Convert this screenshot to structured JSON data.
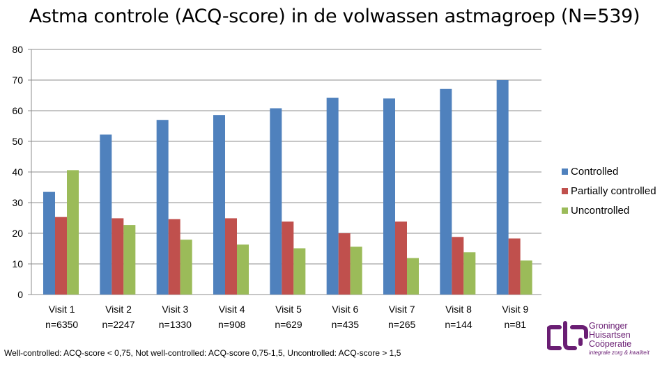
{
  "chart_data": {
    "type": "bar",
    "title": "Astma controle (ACQ-score) in de volwassen astmagroep (N=539)",
    "categories": [
      {
        "label": "Visit 1",
        "sub": "n=6350"
      },
      {
        "label": "Visit 2",
        "sub": "n=2247"
      },
      {
        "label": "Visit 3",
        "sub": "n=1330"
      },
      {
        "label": "Visit 4",
        "sub": "n=908"
      },
      {
        "label": "Visit 5",
        "sub": "n=629"
      },
      {
        "label": "Visit 6",
        "sub": "n=435"
      },
      {
        "label": "Visit 7",
        "sub": "n=265"
      },
      {
        "label": "Visit 8",
        "sub": "n=144"
      },
      {
        "label": "Visit 9",
        "sub": "n=81"
      }
    ],
    "series": [
      {
        "name": "Controlled",
        "color": "#4f81bd",
        "values": [
          33.5,
          52.2,
          57.0,
          58.6,
          60.8,
          64.2,
          64.0,
          67.1,
          70.0
        ]
      },
      {
        "name": "Partially controlled",
        "color": "#c0504d",
        "values": [
          25.3,
          24.9,
          24.6,
          24.9,
          23.8,
          20.0,
          23.8,
          18.8,
          18.3
        ]
      },
      {
        "name": "Uncontrolled",
        "color": "#9bbb59",
        "values": [
          40.6,
          22.7,
          17.9,
          16.3,
          15.1,
          15.6,
          11.9,
          13.8,
          11.1
        ]
      }
    ],
    "yticks": [
      "0",
      "10",
      "20",
      "30",
      "40",
      "50",
      "60",
      "70",
      "80"
    ],
    "ylim": [
      0,
      80
    ],
    "grid": true,
    "legend": "right",
    "xlabel": "",
    "ylabel": ""
  },
  "footnote": "Well-controlled: ACQ-score < 0,75,  Not well-controlled: ACQ-score 0,75-1,5,  Uncontrolled: ACQ-score > 1,5",
  "logo": {
    "line1": "Groninger",
    "line2": "Huisartsen",
    "line3": "Coöperatie",
    "tagline": "integrale zorg & kwaliteit",
    "color": "#6a1e73"
  }
}
